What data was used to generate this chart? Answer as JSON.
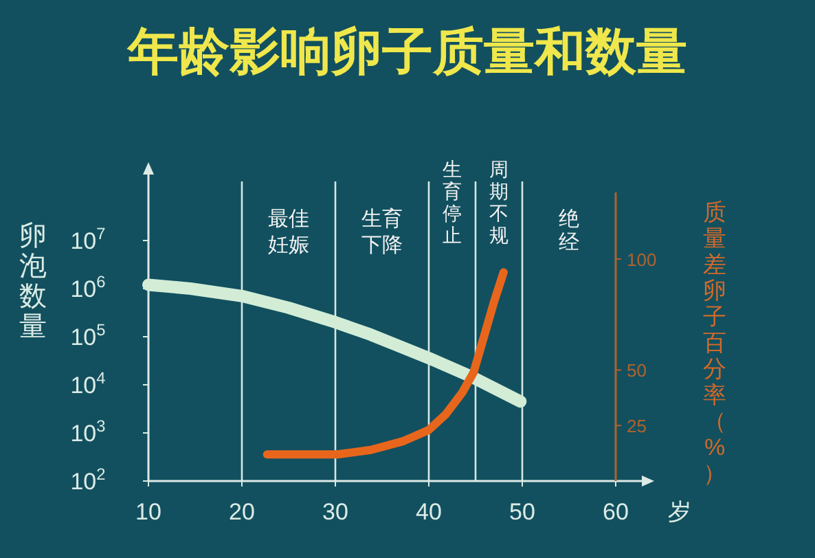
{
  "chart_data": {
    "type": "line",
    "title": "年龄影响卵子质量和数量",
    "xlabel": "岁",
    "ylabel": "卵泡数量",
    "y2label": "质量差卵子百分率（%）",
    "log": "y",
    "xlim": [
      10,
      60
    ],
    "xticks": [
      10,
      20,
      30,
      40,
      50,
      60
    ],
    "ylim": [
      100,
      100000000
    ],
    "yticks": [
      {
        "value": 100,
        "label": "10$^{2}$"
      },
      {
        "value": 1000,
        "label": "10$^{3}$"
      },
      {
        "value": 10000,
        "label": "10$^{4}$"
      },
      {
        "value": 100000,
        "label": "10$^{5}$"
      },
      {
        "value": 1000000,
        "label": "10$^{6}$"
      },
      {
        "value": 10000000,
        "label": "10$^{7}$"
      }
    ],
    "y2lim": [
      0,
      130
    ],
    "y2ticks": [
      25,
      50,
      100
    ],
    "series": [
      {
        "color": "#d2ecd6",
        "x": [
          10,
          14.5,
          20,
          25,
          30,
          33.8,
          40,
          44.5,
          49.8
        ],
        "values": [
          1200000,
          1000000,
          700000,
          400000,
          200000,
          110000,
          36000,
          15000,
          4500
        ]
      },
      {
        "color": "#e8661c",
        "axis": "y2",
        "x": [
          22.7,
          26.3,
          30.2,
          33.8,
          37.3,
          40,
          41.8,
          43.6,
          44.8,
          45.9,
          47,
          48
        ],
        "values": [
          12,
          12,
          12,
          14,
          18,
          23,
          30,
          40,
          49,
          65,
          81,
          94
        ]
      }
    ],
    "ref_lines": [
      {
        "axis": "x",
        "value": 20
      },
      {
        "axis": "x",
        "value": 30
      },
      {
        "axis": "x",
        "value": 40
      },
      {
        "axis": "x",
        "value": 45
      },
      {
        "axis": "x",
        "value": 50
      }
    ],
    "annotations": [
      "最佳妊娠",
      "生育下降",
      "生育停止",
      "周期不规",
      "绝经"
    ]
  }
}
